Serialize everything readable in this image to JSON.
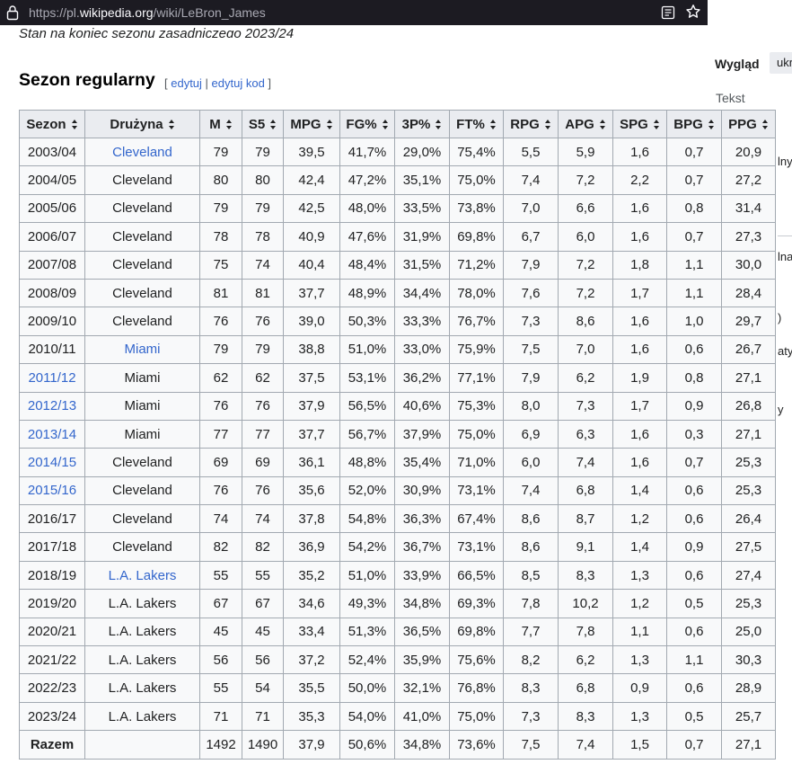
{
  "browser": {
    "url_prefix": "https://pl.",
    "url_domain": "wikipedia.org",
    "url_path": "/wiki/LeBron_James"
  },
  "page": {
    "prev_text": "Stan na koniec sezonu zasadniczego 2023/24",
    "section_title": "Sezon regularny",
    "edit_open": "[ ",
    "edit_label": "edytuj",
    "edit_sep": " | ",
    "edit_code_label": "edytuj kod",
    "edit_close": " ]"
  },
  "sidebar": {
    "appearance_title": "Wygląd",
    "appearance_button": "ukr",
    "text_label": "Tekst",
    "frag1": "lny",
    "frag2": "lna",
    "frag3": ")",
    "frag4": "aty",
    "frag5": "y"
  },
  "table": {
    "headers": [
      "Sezon",
      "Drużyna",
      "M",
      "S5",
      "MPG",
      "FG%",
      "3P%",
      "FT%",
      "RPG",
      "APG",
      "SPG",
      "BPG",
      "PPG"
    ],
    "rows": [
      {
        "season": "2003/04",
        "season_link": false,
        "team": "Cleveland",
        "team_link": true,
        "vals": [
          "79",
          "79",
          "39,5",
          "41,7%",
          "29,0%",
          "75,4%",
          "5,5",
          "5,9",
          "1,6",
          "0,7",
          "20,9"
        ]
      },
      {
        "season": "2004/05",
        "season_link": false,
        "team": "Cleveland",
        "team_link": false,
        "vals": [
          "80",
          "80",
          "42,4",
          "47,2%",
          "35,1%",
          "75,0%",
          "7,4",
          "7,2",
          "2,2",
          "0,7",
          "27,2"
        ]
      },
      {
        "season": "2005/06",
        "season_link": false,
        "team": "Cleveland",
        "team_link": false,
        "vals": [
          "79",
          "79",
          "42,5",
          "48,0%",
          "33,5%",
          "73,8%",
          "7,0",
          "6,6",
          "1,6",
          "0,8",
          "31,4"
        ]
      },
      {
        "season": "2006/07",
        "season_link": false,
        "team": "Cleveland",
        "team_link": false,
        "vals": [
          "78",
          "78",
          "40,9",
          "47,6%",
          "31,9%",
          "69,8%",
          "6,7",
          "6,0",
          "1,6",
          "0,7",
          "27,3"
        ]
      },
      {
        "season": "2007/08",
        "season_link": false,
        "team": "Cleveland",
        "team_link": false,
        "vals": [
          "75",
          "74",
          "40,4",
          "48,4%",
          "31,5%",
          "71,2%",
          "7,9",
          "7,2",
          "1,8",
          "1,1",
          "30,0"
        ]
      },
      {
        "season": "2008/09",
        "season_link": false,
        "team": "Cleveland",
        "team_link": false,
        "vals": [
          "81",
          "81",
          "37,7",
          "48,9%",
          "34,4%",
          "78,0%",
          "7,6",
          "7,2",
          "1,7",
          "1,1",
          "28,4"
        ]
      },
      {
        "season": "2009/10",
        "season_link": false,
        "team": "Cleveland",
        "team_link": false,
        "vals": [
          "76",
          "76",
          "39,0",
          "50,3%",
          "33,3%",
          "76,7%",
          "7,3",
          "8,6",
          "1,6",
          "1,0",
          "29,7"
        ]
      },
      {
        "season": "2010/11",
        "season_link": false,
        "team": "Miami",
        "team_link": true,
        "vals": [
          "79",
          "79",
          "38,8",
          "51,0%",
          "33,0%",
          "75,9%",
          "7,5",
          "7,0",
          "1,6",
          "0,6",
          "26,7"
        ]
      },
      {
        "season": "2011/12",
        "season_link": true,
        "team": "Miami",
        "team_link": false,
        "vals": [
          "62",
          "62",
          "37,5",
          "53,1%",
          "36,2%",
          "77,1%",
          "7,9",
          "6,2",
          "1,9",
          "0,8",
          "27,1"
        ]
      },
      {
        "season": "2012/13",
        "season_link": true,
        "team": "Miami",
        "team_link": false,
        "vals": [
          "76",
          "76",
          "37,9",
          "56,5%",
          "40,6%",
          "75,3%",
          "8,0",
          "7,3",
          "1,7",
          "0,9",
          "26,8"
        ]
      },
      {
        "season": "2013/14",
        "season_link": true,
        "team": "Miami",
        "team_link": false,
        "vals": [
          "77",
          "77",
          "37,7",
          "56,7%",
          "37,9%",
          "75,0%",
          "6,9",
          "6,3",
          "1,6",
          "0,3",
          "27,1"
        ]
      },
      {
        "season": "2014/15",
        "season_link": true,
        "team": "Cleveland",
        "team_link": false,
        "vals": [
          "69",
          "69",
          "36,1",
          "48,8%",
          "35,4%",
          "71,0%",
          "6,0",
          "7,4",
          "1,6",
          "0,7",
          "25,3"
        ]
      },
      {
        "season": "2015/16",
        "season_link": true,
        "team": "Cleveland",
        "team_link": false,
        "vals": [
          "76",
          "76",
          "35,6",
          "52,0%",
          "30,9%",
          "73,1%",
          "7,4",
          "6,8",
          "1,4",
          "0,6",
          "25,3"
        ]
      },
      {
        "season": "2016/17",
        "season_link": false,
        "team": "Cleveland",
        "team_link": false,
        "vals": [
          "74",
          "74",
          "37,8",
          "54,8%",
          "36,3%",
          "67,4%",
          "8,6",
          "8,7",
          "1,2",
          "0,6",
          "26,4"
        ]
      },
      {
        "season": "2017/18",
        "season_link": false,
        "team": "Cleveland",
        "team_link": false,
        "vals": [
          "82",
          "82",
          "36,9",
          "54,2%",
          "36,7%",
          "73,1%",
          "8,6",
          "9,1",
          "1,4",
          "0,9",
          "27,5"
        ]
      },
      {
        "season": "2018/19",
        "season_link": false,
        "team": "L.A. Lakers",
        "team_link": true,
        "vals": [
          "55",
          "55",
          "35,2",
          "51,0%",
          "33,9%",
          "66,5%",
          "8,5",
          "8,3",
          "1,3",
          "0,6",
          "27,4"
        ]
      },
      {
        "season": "2019/20",
        "season_link": false,
        "team": "L.A. Lakers",
        "team_link": false,
        "vals": [
          "67",
          "67",
          "34,6",
          "49,3%",
          "34,8%",
          "69,3%",
          "7,8",
          "10,2",
          "1,2",
          "0,5",
          "25,3"
        ]
      },
      {
        "season": "2020/21",
        "season_link": false,
        "team": "L.A. Lakers",
        "team_link": false,
        "vals": [
          "45",
          "45",
          "33,4",
          "51,3%",
          "36,5%",
          "69,8%",
          "7,7",
          "7,8",
          "1,1",
          "0,6",
          "25,0"
        ]
      },
      {
        "season": "2021/22",
        "season_link": false,
        "team": "L.A. Lakers",
        "team_link": false,
        "vals": [
          "56",
          "56",
          "37,2",
          "52,4%",
          "35,9%",
          "75,6%",
          "8,2",
          "6,2",
          "1,3",
          "1,1",
          "30,3"
        ]
      },
      {
        "season": "2022/23",
        "season_link": false,
        "team": "L.A. Lakers",
        "team_link": false,
        "vals": [
          "55",
          "54",
          "35,5",
          "50,0%",
          "32,1%",
          "76,8%",
          "8,3",
          "6,8",
          "0,9",
          "0,6",
          "28,9"
        ]
      },
      {
        "season": "2023/24",
        "season_link": false,
        "team": "L.A. Lakers",
        "team_link": false,
        "vals": [
          "71",
          "71",
          "35,3",
          "54,0%",
          "41,0%",
          "75,0%",
          "7,3",
          "8,3",
          "1,3",
          "0,5",
          "25,7"
        ]
      }
    ],
    "total": {
      "label": "Razem",
      "team": "",
      "vals": [
        "1492",
        "1490",
        "37,9",
        "50,6%",
        "34,8%",
        "73,6%",
        "7,5",
        "7,4",
        "1,5",
        "0,7",
        "27,1"
      ]
    }
  }
}
